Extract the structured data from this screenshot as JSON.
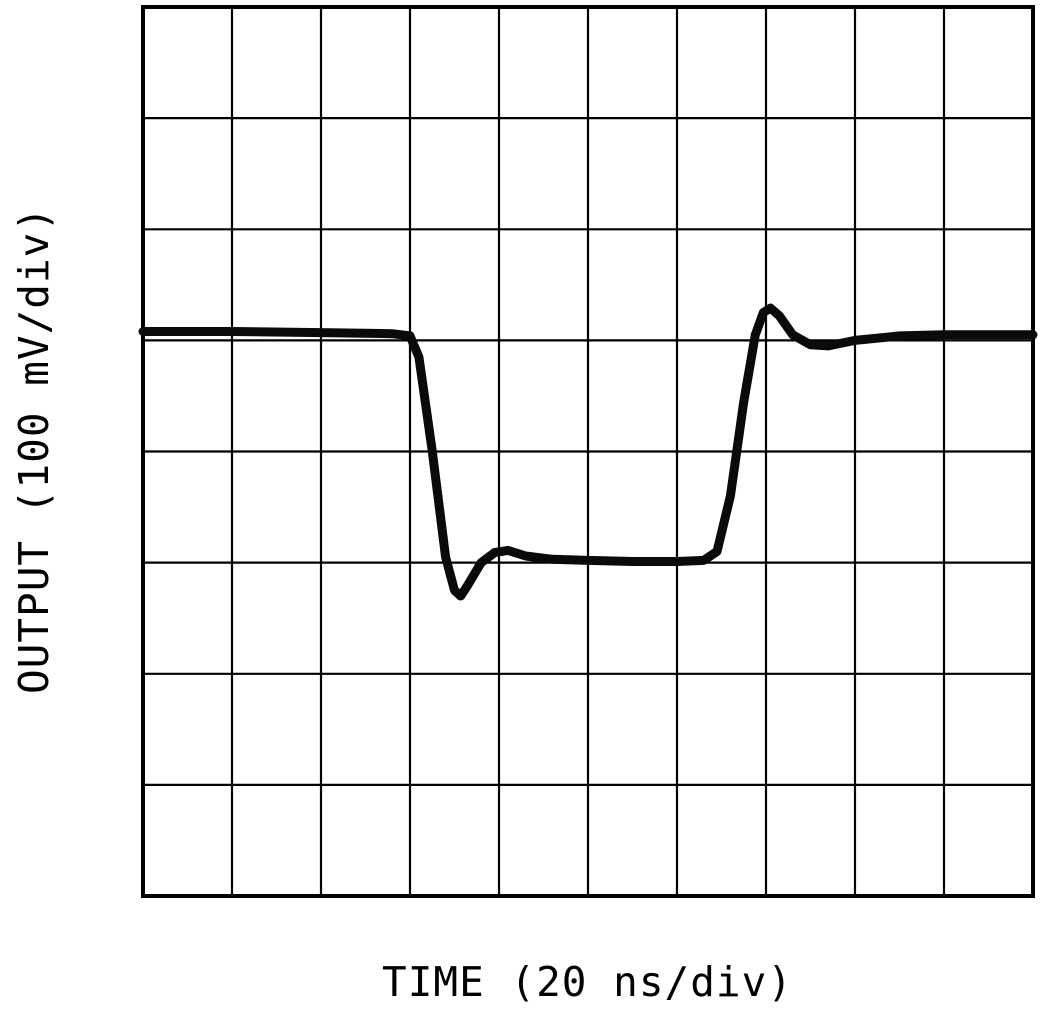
{
  "chart_data": {
    "type": "line",
    "title": "",
    "xlabel": "TIME (20 ns/div)",
    "ylabel": "OUTPUT (100 mV/div)",
    "x_per_div": "20 ns",
    "y_per_div": "100 mV",
    "x_divisions": 10,
    "y_divisions": 8,
    "grid": true,
    "legend": "none",
    "description": "Oscilloscope transient response: flat high level near 2.9 div from top, fast falling edge at ~3 div with undershoot to ~5.3 div, settled low level on the 5 div gridline (~2 divisions = ~200 mV below baseline) lasting ~3.3 divisions (~66 ns), fast rising edge at ~6.9 div with small overshoot, settling back to baseline",
    "series": [
      {
        "name": "output-trace",
        "points_div": [
          [
            0.0,
            2.92
          ],
          [
            1.0,
            2.92
          ],
          [
            2.0,
            2.93
          ],
          [
            2.8,
            2.94
          ],
          [
            3.0,
            2.96
          ],
          [
            3.1,
            3.15
          ],
          [
            3.25,
            4.0
          ],
          [
            3.4,
            4.95
          ],
          [
            3.5,
            5.25
          ],
          [
            3.57,
            5.3
          ],
          [
            3.65,
            5.2
          ],
          [
            3.8,
            5.0
          ],
          [
            3.95,
            4.91
          ],
          [
            4.1,
            4.89
          ],
          [
            4.3,
            4.94
          ],
          [
            4.6,
            4.97
          ],
          [
            5.0,
            4.98
          ],
          [
            5.5,
            4.99
          ],
          [
            6.0,
            4.99
          ],
          [
            6.3,
            4.98
          ],
          [
            6.45,
            4.9
          ],
          [
            6.6,
            4.4
          ],
          [
            6.75,
            3.55
          ],
          [
            6.88,
            2.95
          ],
          [
            6.97,
            2.75
          ],
          [
            7.05,
            2.71
          ],
          [
            7.15,
            2.78
          ],
          [
            7.3,
            2.95
          ],
          [
            7.5,
            3.04
          ],
          [
            7.7,
            3.05
          ],
          [
            8.0,
            3.0
          ],
          [
            8.5,
            2.96
          ],
          [
            9.0,
            2.95
          ],
          [
            10.0,
            2.95
          ]
        ]
      }
    ]
  },
  "colors": {
    "background": "#ffffff",
    "grid": "#000000",
    "border": "#000000",
    "trace": "#0a0a0a",
    "text": "#000000"
  }
}
